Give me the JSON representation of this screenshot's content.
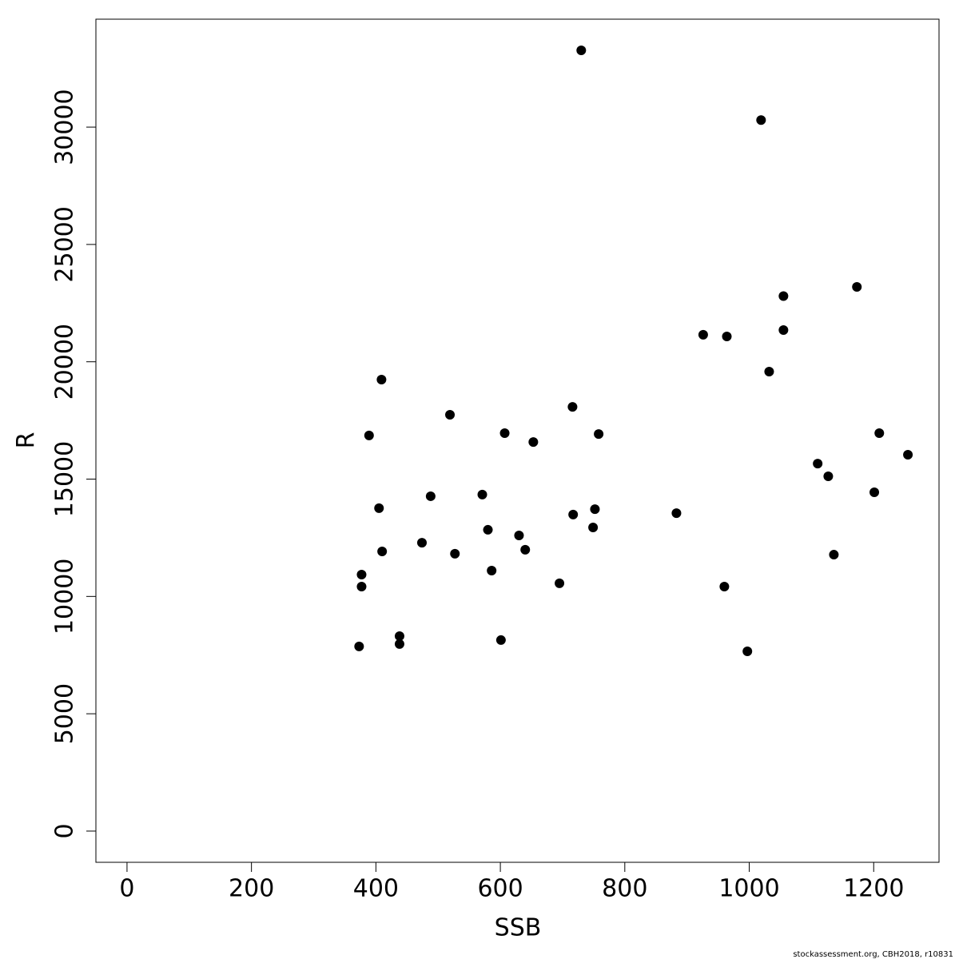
{
  "chart_data": {
    "type": "scatter",
    "x_label": "SSB",
    "y_label": "R",
    "x": [
      730,
      1019,
      1173,
      1055,
      926,
      964,
      1055,
      1032,
      409,
      716,
      519,
      389,
      607,
      758,
      653,
      1209,
      1255,
      1110,
      1127,
      571,
      488,
      1201,
      405,
      752,
      717,
      883,
      580,
      749,
      630,
      474,
      640,
      410,
      527,
      1136,
      586,
      377,
      695,
      377,
      960,
      438,
      438,
      601,
      373,
      997
    ],
    "values": [
      33270,
      30300,
      23190,
      22800,
      21150,
      21080,
      21350,
      19580,
      19240,
      18080,
      17740,
      16860,
      16960,
      16920,
      16580,
      16960,
      16040,
      15660,
      15120,
      14340,
      14270,
      14440,
      13760,
      13720,
      13490,
      13550,
      12840,
      12940,
      12600,
      12290,
      11990,
      11920,
      11820,
      11780,
      11100,
      10930,
      10560,
      10420,
      10420,
      8310,
      7970,
      8140,
      7870,
      7660
    ],
    "color": "#000000",
    "xlim": [
      -50,
      1305
    ],
    "ylim": [
      -1330,
      34600
    ],
    "xticks": [
      0,
      200,
      400,
      600,
      800,
      1000,
      1200
    ],
    "yticks": [
      0,
      5000,
      10000,
      15000,
      20000,
      25000,
      30000
    ]
  },
  "footer": "stockassessment.org, CBH2018, r10831"
}
